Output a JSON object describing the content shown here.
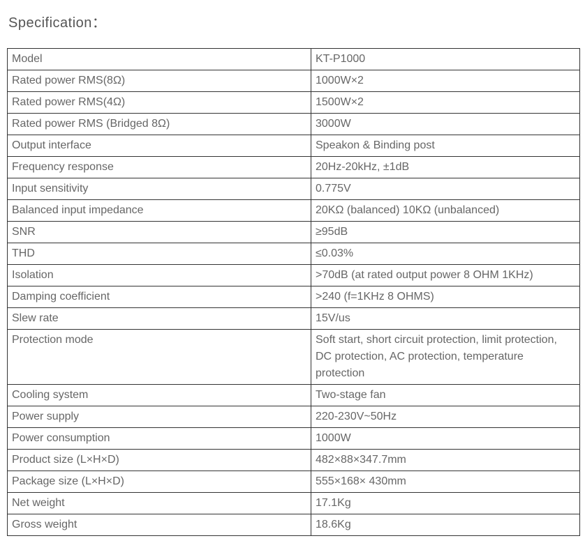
{
  "title": "Specification：",
  "table": {
    "label_col_width": 435,
    "value_col_width": 385,
    "border_color": "#333333",
    "text_color": "#666666",
    "font_size": 16,
    "rows": [
      {
        "label": "Model",
        "value": "KT-P1000"
      },
      {
        "label": "Rated power RMS(8Ω)",
        "value": "1000W×2"
      },
      {
        "label": "Rated power RMS(4Ω)",
        "value": "1500W×2"
      },
      {
        "label": "Rated power RMS (Bridged 8Ω)",
        "value": "3000W"
      },
      {
        "label": "Output interface",
        "value": "Speakon & Binding post"
      },
      {
        "label": "Frequency response",
        "value": "20Hz-20kHz, ±1dB"
      },
      {
        "label": "Input sensitivity",
        "value": "0.775V"
      },
      {
        "label": "Balanced input impedance",
        "value": "20KΩ (balanced) 10KΩ (unbalanced)"
      },
      {
        "label": "SNR",
        "value": "≥95dB"
      },
      {
        "label": "THD",
        "value": "≤0.03%"
      },
      {
        "label": "Isolation",
        "value": ">70dB (at rated output power 8 OHM 1KHz)"
      },
      {
        "label": "Damping coefficient",
        "value": ">240 (f=1KHz 8 OHMS)"
      },
      {
        "label": "Slew rate",
        "value": "15V/us"
      },
      {
        "label": "Protection mode",
        "value": "Soft start, short circuit protection, limit protection, DC protection, AC protection, temperature protection"
      },
      {
        "label": "Cooling system",
        "value": "Two-stage fan"
      },
      {
        "label": "Power supply",
        "value": "220-230V~50Hz"
      },
      {
        "label": "Power consumption",
        "value": "1000W"
      },
      {
        "label": "Product size (L×H×D)",
        "value": "482×88×347.7mm"
      },
      {
        "label": "Package size (L×H×D)",
        "value": "555×168× 430mm"
      },
      {
        "label": "Net weight",
        "value": "17.1Kg"
      },
      {
        "label": "Gross weight",
        "value": "18.6Kg"
      }
    ]
  }
}
